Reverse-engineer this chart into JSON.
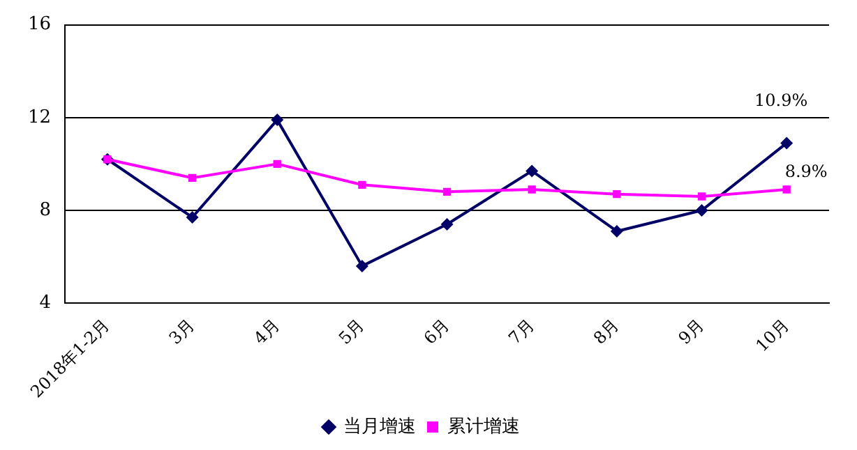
{
  "chart_data": {
    "type": "line",
    "categories": [
      "2018年1-2月",
      "3月",
      "4月",
      "5月",
      "6月",
      "7月",
      "8月",
      "9月",
      "10月"
    ],
    "series": [
      {
        "name": "当月增速",
        "color": "#000066",
        "marker": "diamond",
        "values": [
          10.2,
          7.7,
          11.9,
          5.6,
          7.4,
          9.7,
          7.1,
          8.0,
          10.9
        ],
        "value_labels": [
          null,
          null,
          null,
          null,
          null,
          null,
          null,
          null,
          "10.9%"
        ]
      },
      {
        "name": "累计增速",
        "color": "#ff00ff",
        "marker": "square",
        "values": [
          10.2,
          9.4,
          10.0,
          9.1,
          8.8,
          8.9,
          8.7,
          8.6,
          8.9
        ],
        "value_labels": [
          null,
          null,
          null,
          null,
          null,
          null,
          null,
          null,
          "8.9%"
        ]
      }
    ],
    "ylim": [
      4,
      16
    ],
    "yticks": [
      4,
      8,
      12,
      16
    ],
    "grid": "y",
    "legend": "bottom"
  }
}
